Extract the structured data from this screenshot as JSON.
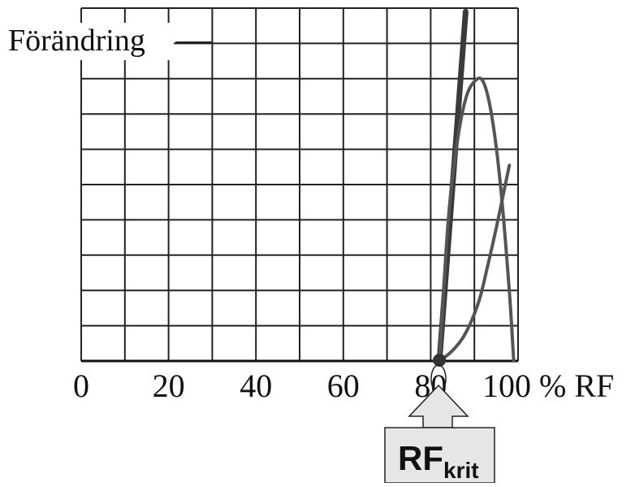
{
  "chart_data": {
    "type": "line",
    "ylabel": "Förändring",
    "xlim": [
      0,
      100
    ],
    "x_ticks": [
      {
        "value": 0,
        "label": "0"
      },
      {
        "value": 20,
        "label": "20"
      },
      {
        "value": 40,
        "label": "40"
      },
      {
        "value": 60,
        "label": "60"
      },
      {
        "value": 80,
        "label": "80"
      },
      {
        "value": 100,
        "label": "100 % RF"
      }
    ],
    "grid": true,
    "marker": {
      "label_main": "RF",
      "label_sub": "krit",
      "x": 82
    },
    "series": [
      {
        "x": [
          82,
          88
        ],
        "y": [
          0,
          100
        ]
      },
      {
        "x": [
          82,
          84,
          86,
          88,
          90,
          92,
          94,
          96,
          98,
          99
        ],
        "y": [
          0,
          40,
          62,
          75,
          80,
          80,
          70,
          50,
          20,
          0
        ]
      },
      {
        "x": [
          82,
          85,
          88,
          91,
          93,
          95,
          97,
          98
        ],
        "y": [
          0,
          3,
          8,
          17,
          27,
          38,
          50,
          56
        ]
      }
    ],
    "colors": {
      "grid": "#222222",
      "thick_line": "#3a3a3a",
      "curve": "#555555",
      "box_fill": "#e6e6e6"
    }
  }
}
